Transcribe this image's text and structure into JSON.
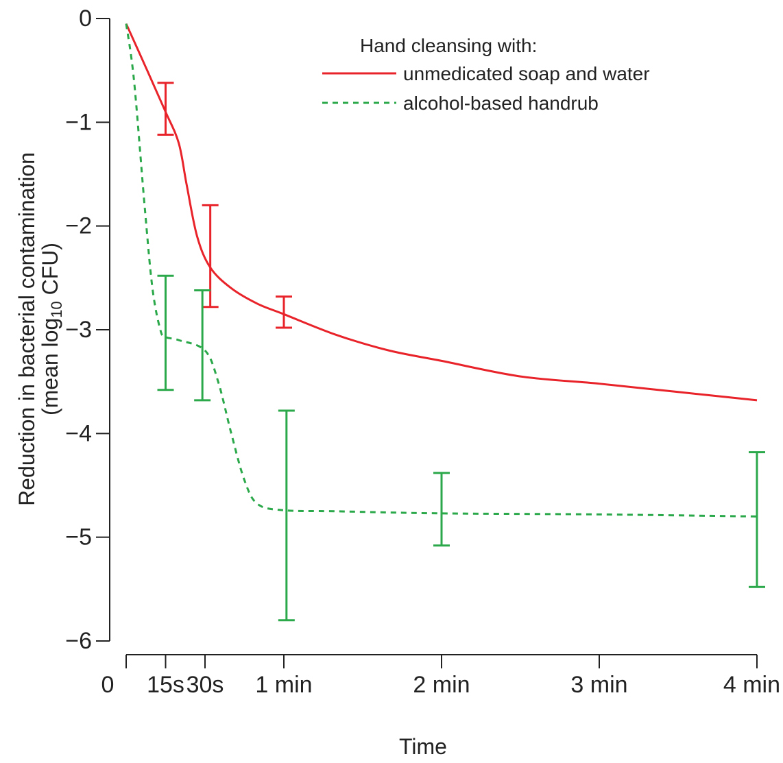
{
  "chart_data": {
    "type": "line",
    "title": "",
    "xlabel": "Time",
    "ylabel_line1": "Reduction in bacterial contamination",
    "ylabel_line2_pre": "(mean log",
    "ylabel_line2_sub": "10",
    "ylabel_line2_post": " CFU)",
    "ylim": [
      -6,
      0
    ],
    "xlim": [
      0,
      240
    ],
    "x_ticks": [
      {
        "value": 0,
        "label": "0"
      },
      {
        "value": 15,
        "label": "15s"
      },
      {
        "value": 30,
        "label": "30s"
      },
      {
        "value": 60,
        "label": "1 min"
      },
      {
        "value": 120,
        "label": "2 min"
      },
      {
        "value": 180,
        "label": "3 min"
      },
      {
        "value": 240,
        "label": "4 min"
      }
    ],
    "y_ticks": [
      {
        "value": 0,
        "label": "0"
      },
      {
        "value": -1,
        "label": "−1"
      },
      {
        "value": -2,
        "label": "−2"
      },
      {
        "value": -3,
        "label": "−3"
      },
      {
        "value": -4,
        "label": "−4"
      },
      {
        "value": -5,
        "label": "−5"
      },
      {
        "value": -6,
        "label": "−6"
      }
    ],
    "legend": {
      "title": "Hand cleansing with:",
      "placement": "top-right"
    },
    "series": [
      {
        "name": "unmedicated soap and water",
        "color": "#e8232a",
        "style": "solid",
        "x": [
          0,
          8,
          15,
          20,
          23,
          27,
          32,
          40,
          50,
          60,
          80,
          100,
          120,
          150,
          180,
          210,
          240
        ],
        "y": [
          -0.05,
          -0.5,
          -0.9,
          -1.2,
          -1.6,
          -2.1,
          -2.4,
          -2.6,
          -2.75,
          -2.85,
          -3.05,
          -3.2,
          -3.3,
          -3.45,
          -3.52,
          -3.6,
          -3.68
        ],
        "error_bars": [
          {
            "x": 15,
            "low": -1.12,
            "high": -0.62
          },
          {
            "x": 32,
            "low": -2.78,
            "high": -1.8
          },
          {
            "x": 60,
            "low": -2.98,
            "high": -2.68
          }
        ]
      },
      {
        "name": "alcohol-based handrub",
        "color": "#2aa84a",
        "style": "dashed",
        "x": [
          0,
          3,
          7,
          10,
          13,
          15,
          20,
          30,
          35,
          40,
          45,
          50,
          60,
          80,
          120,
          180,
          240
        ],
        "y": [
          -0.05,
          -0.6,
          -1.8,
          -2.6,
          -3.0,
          -3.07,
          -3.1,
          -3.2,
          -3.5,
          -4.0,
          -4.45,
          -4.68,
          -4.74,
          -4.75,
          -4.77,
          -4.78,
          -4.8
        ],
        "error_bars": [
          {
            "x": 15,
            "low": -3.58,
            "high": -2.48
          },
          {
            "x": 29,
            "low": -3.68,
            "high": -2.62
          },
          {
            "x": 61,
            "low": -5.8,
            "high": -3.78
          },
          {
            "x": 120,
            "low": -5.08,
            "high": -4.38
          },
          {
            "x": 240,
            "low": -5.48,
            "high": -4.18
          }
        ]
      }
    ]
  }
}
